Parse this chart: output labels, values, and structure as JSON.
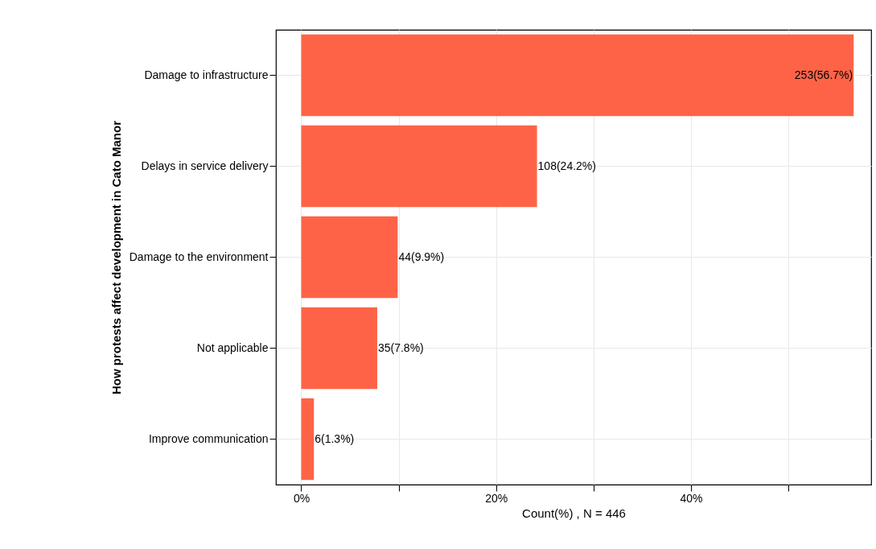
{
  "chart_data": {
    "type": "bar",
    "orientation": "horizontal",
    "ylabel": "How protests affect development in Cato Manor",
    "xlabel": "Count(%) , N = 446",
    "categories": [
      "Damage to infrastructure",
      "Delays in service delivery",
      "Damage to the environment",
      "Not applicable",
      "Improve communication"
    ],
    "values": [
      56.7,
      24.2,
      9.9,
      7.8,
      1.3
    ],
    "value_labels": [
      "253(56.7%)",
      "108(24.2%)",
      "44(9.9%)",
      "35(7.8%)",
      "6(1.3%)"
    ],
    "color": "#ff6347",
    "xlim": [
      -2.6,
      58.5
    ],
    "xticks": [
      {
        "value": 0,
        "label": "0%"
      },
      {
        "value": 10,
        "label": null
      },
      {
        "value": 20,
        "label": "20%"
      },
      {
        "value": 30,
        "label": null
      },
      {
        "value": 40,
        "label": "40%"
      },
      {
        "value": 50,
        "label": null
      }
    ],
    "grid": true
  }
}
